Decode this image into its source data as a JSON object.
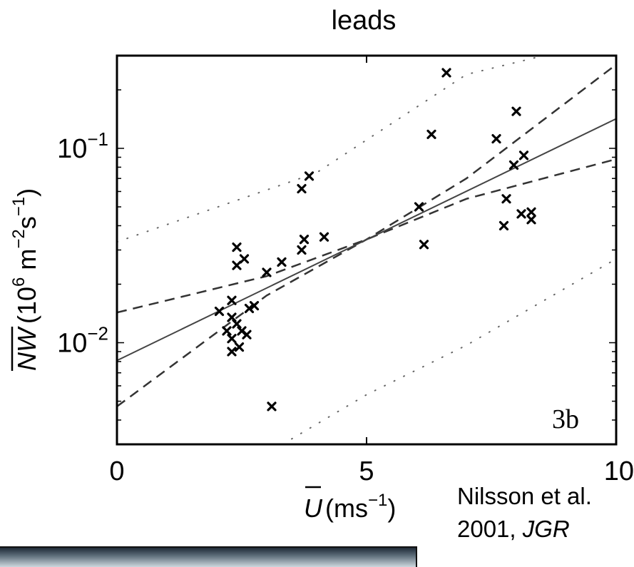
{
  "chart_data": {
    "type": "scatter",
    "title": "leads",
    "panel_label": "3b",
    "xlabel": "U (ms⁻¹)",
    "xlabel_parts": {
      "symbol": "U",
      "unit": "(ms",
      "exp": "−1",
      "close": ")"
    },
    "ylabel": "NW (10⁶ m⁻²s⁻¹)",
    "ylabel_parts": {
      "symbol": "NW",
      "unit_pre": "(10",
      "exp6": "6",
      "m": " m",
      "exp_m": "−2",
      "s": "s",
      "exp_s": "−1",
      "close": ")"
    },
    "xlim": [
      0,
      10
    ],
    "ylim": [
      0.003,
      0.3
    ],
    "yscale": "log",
    "x_ticks": [
      {
        "value": 0,
        "label": "0"
      },
      {
        "value": 5,
        "label": "5"
      },
      {
        "value": 10,
        "label": "10"
      }
    ],
    "y_ticks": [
      {
        "value": 0.01,
        "base": "10",
        "exp": "−2"
      },
      {
        "value": 0.1,
        "base": "10",
        "exp": "−1"
      }
    ],
    "grid": false,
    "points": [
      [
        6.6,
        0.245
      ],
      [
        8.0,
        0.155
      ],
      [
        6.3,
        0.118
      ],
      [
        7.6,
        0.112
      ],
      [
        8.15,
        0.092
      ],
      [
        7.95,
        0.082
      ],
      [
        3.85,
        0.072
      ],
      [
        3.7,
        0.062
      ],
      [
        6.05,
        0.05
      ],
      [
        7.8,
        0.055
      ],
      [
        8.3,
        0.047
      ],
      [
        8.1,
        0.046
      ],
      [
        8.3,
        0.043
      ],
      [
        7.75,
        0.04
      ],
      [
        3.75,
        0.034
      ],
      [
        4.15,
        0.035
      ],
      [
        3.7,
        0.03
      ],
      [
        6.15,
        0.032
      ],
      [
        2.4,
        0.031
      ],
      [
        2.55,
        0.027
      ],
      [
        2.4,
        0.025
      ],
      [
        3.3,
        0.026
      ],
      [
        3.0,
        0.023
      ],
      [
        2.3,
        0.0165
      ],
      [
        2.75,
        0.0155
      ],
      [
        2.05,
        0.0145
      ],
      [
        2.3,
        0.0135
      ],
      [
        2.65,
        0.015
      ],
      [
        2.4,
        0.0125
      ],
      [
        2.5,
        0.0115
      ],
      [
        2.2,
        0.0115
      ],
      [
        2.6,
        0.011
      ],
      [
        2.3,
        0.0105
      ],
      [
        2.45,
        0.0095
      ],
      [
        2.3,
        0.009
      ],
      [
        3.1,
        0.0047
      ]
    ],
    "fit_line": {
      "style": "solid",
      "points": [
        [
          0,
          0.0081
        ],
        [
          10,
          0.142
        ]
      ]
    },
    "confidence_bands": [
      {
        "style": "dashed",
        "points": [
          [
            0,
            0.0143
          ],
          [
            3,
            0.022
          ],
          [
            5,
            0.034
          ],
          [
            7,
            0.055
          ],
          [
            10,
            0.088
          ]
        ]
      },
      {
        "style": "dashed",
        "points": [
          [
            0,
            0.0047
          ],
          [
            3,
            0.0175
          ],
          [
            5,
            0.034
          ],
          [
            7,
            0.07
          ],
          [
            10,
            0.27
          ]
        ]
      }
    ],
    "prediction_bands": [
      {
        "style": "dotted",
        "points": [
          [
            0,
            0.033
          ],
          [
            4,
            0.075
          ],
          [
            7,
            0.24
          ],
          [
            9,
            0.32
          ]
        ]
      },
      {
        "style": "dotted",
        "points": [
          [
            3.5,
            0.0032
          ],
          [
            5,
            0.0054
          ],
          [
            7,
            0.0097
          ],
          [
            10,
            0.027
          ]
        ]
      }
    ],
    "colors": {
      "ink": "#000000",
      "fit": "#444444",
      "background": "#ffffff"
    }
  },
  "citation": {
    "authors": "Nilsson et al.",
    "year": "2001,",
    "journal": "JGR"
  }
}
